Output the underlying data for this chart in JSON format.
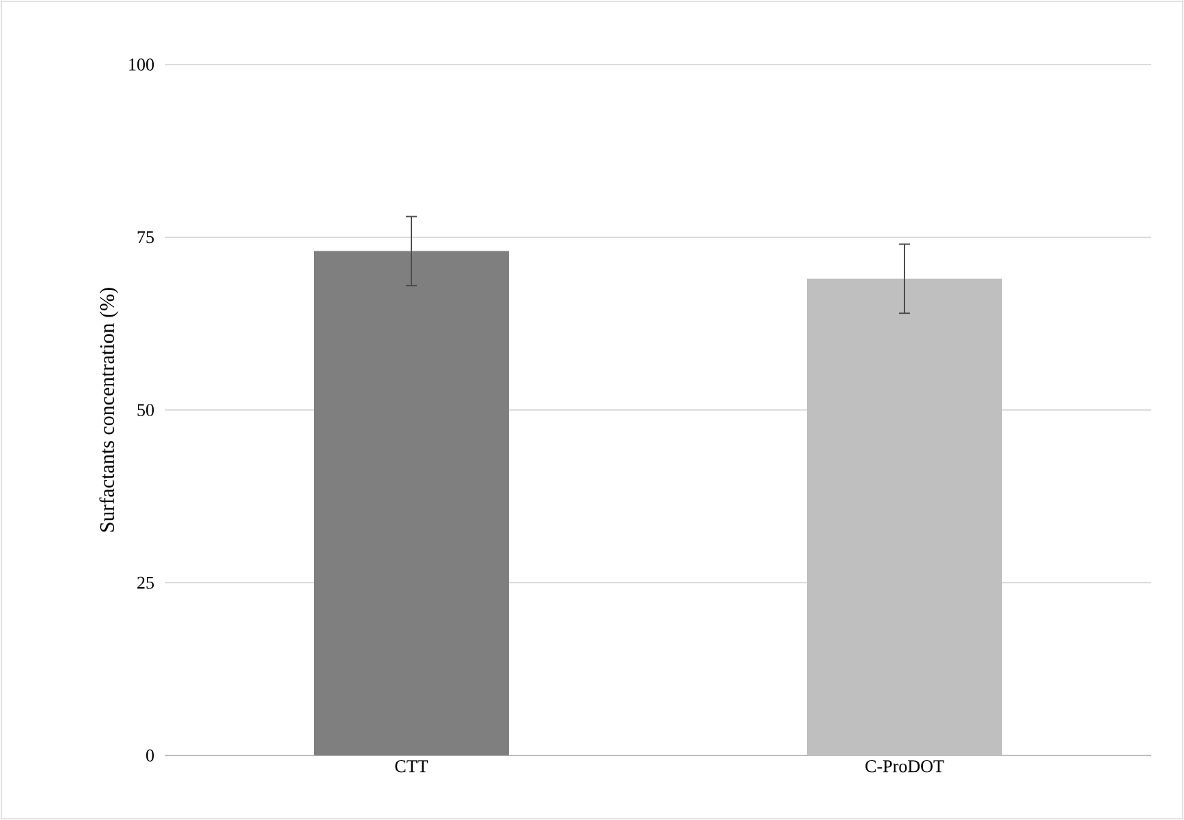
{
  "chart_data": {
    "type": "bar",
    "ylabel": "Surfactants concentration (%)",
    "categories": [
      "CTT",
      "C-ProDOT"
    ],
    "values": [
      73,
      69
    ],
    "colors": [
      "#7f7f7f",
      "#bfbfbf"
    ],
    "errors": [
      5,
      5
    ],
    "ylim": [
      0,
      100
    ],
    "yticks": [
      0,
      25,
      50,
      75,
      100
    ],
    "grid": "y"
  }
}
